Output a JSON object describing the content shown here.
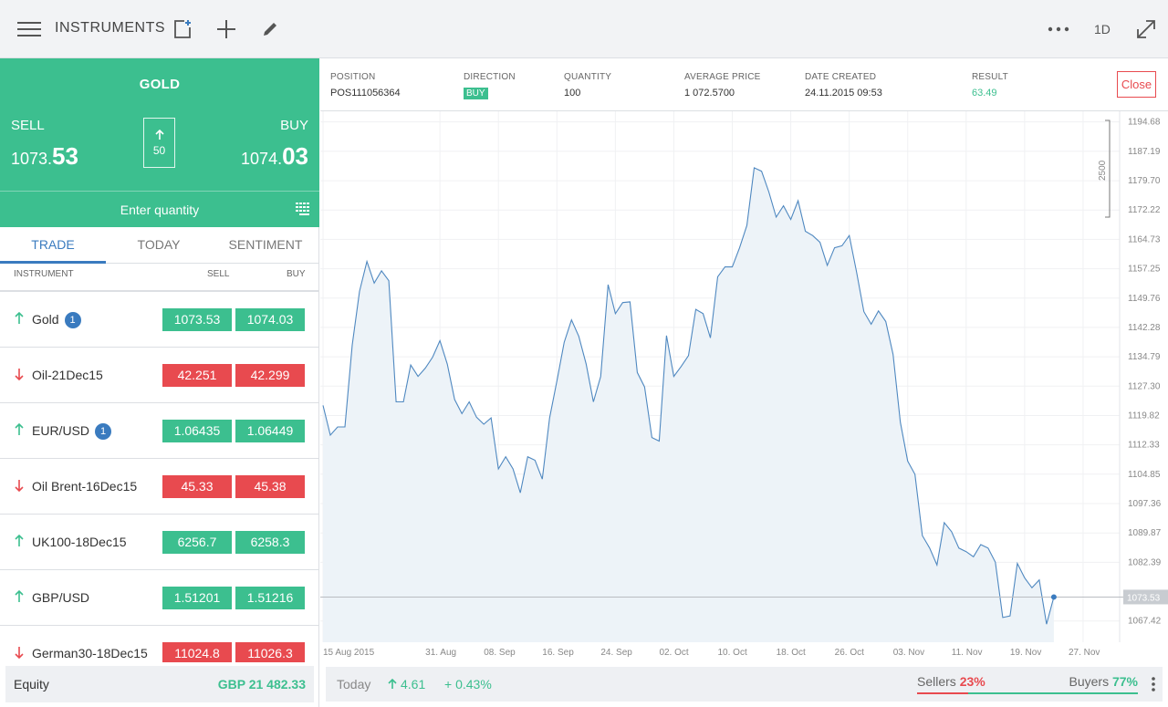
{
  "header": {
    "title": "INSTRUMENTS",
    "timeframe": "1D"
  },
  "ticket": {
    "instrument": "GOLD",
    "sell_label": "SELL",
    "buy_label": "BUY",
    "sell_price_main": "1073.",
    "sell_price_big": "53",
    "buy_price_main": "1074.",
    "buy_price_big": "03",
    "spread": "50",
    "quantity_placeholder": "Enter quantity"
  },
  "tabs": [
    "TRADE",
    "TODAY",
    "SENTIMENT"
  ],
  "instrument_list": {
    "headers": {
      "instrument": "INSTRUMENT",
      "sell": "SELL",
      "buy": "BUY"
    },
    "rows": [
      {
        "name": "Gold",
        "badge": "1",
        "direction": "up",
        "sell": "1073.53",
        "buy": "1074.03"
      },
      {
        "name": "Oil-21Dec15",
        "badge": "",
        "direction": "down",
        "sell": "42.251",
        "buy": "42.299"
      },
      {
        "name": "EUR/USD",
        "badge": "1",
        "direction": "up",
        "sell": "1.06435",
        "buy": "1.06449"
      },
      {
        "name": "Oil Brent-16Dec15",
        "badge": "",
        "direction": "down",
        "sell": "45.33",
        "buy": "45.38"
      },
      {
        "name": "UK100-18Dec15",
        "badge": "",
        "direction": "up",
        "sell": "6256.7",
        "buy": "6258.3"
      },
      {
        "name": "GBP/USD",
        "badge": "",
        "direction": "up",
        "sell": "1.51201",
        "buy": "1.51216"
      },
      {
        "name": "German30-18Dec15",
        "badge": "",
        "direction": "down",
        "sell": "11024.8",
        "buy": "11026.3"
      }
    ]
  },
  "equity": {
    "label": "Equity",
    "value": "GBP 21 482.33"
  },
  "position": {
    "position_label": "POSITION",
    "position_value": "POS111056364",
    "direction_label": "DIRECTION",
    "direction_value": "BUY",
    "quantity_label": "QUANTITY",
    "quantity_value": "100",
    "avg_price_label": "AVERAGE PRICE",
    "avg_price_value": "1 072.5700",
    "date_label": "DATE CREATED",
    "date_value": "24.11.2015 09:53",
    "result_label": "RESULT",
    "result_value": "63.49",
    "close_label": "Close"
  },
  "bottom": {
    "today_label": "Today",
    "change_value": "4.61",
    "change_pct": "+ 0.43%",
    "sellers_label": "Sellers",
    "sellers_value": "23%",
    "sellers_fraction": 0.23,
    "buyers_label": "Buyers",
    "buyers_value": "77%"
  },
  "colors": {
    "up": "#3cbf8f",
    "down": "#e84a4f",
    "accent": "#3a7bbf"
  },
  "chart_data": {
    "type": "area",
    "current_price_label": "1073.53",
    "current_price": 1073.53,
    "scale_marker_label": "2500",
    "y_ticks": [
      "1194.68",
      "1187.19",
      "1179.70",
      "1172.22",
      "1164.73",
      "1157.25",
      "1149.76",
      "1142.28",
      "1134.79",
      "1127.30",
      "1119.82",
      "1112.33",
      "1104.85",
      "1097.36",
      "1089.87",
      "1082.39",
      "1067.42"
    ],
    "ylim": [
      1062.0,
      1196.0
    ],
    "x_ticks": [
      "15 Aug 2015",
      "31. Aug",
      "08. Sep",
      "16. Sep",
      "24. Sep",
      "02. Oct",
      "10. Oct",
      "18. Oct",
      "26. Oct",
      "03. Nov",
      "11. Nov",
      "19. Nov",
      "27. Nov"
    ],
    "x_tick_days": [
      0,
      16,
      24,
      32,
      40,
      48,
      56,
      64,
      72,
      80,
      88,
      96,
      104
    ],
    "x_days": [
      0,
      1,
      2,
      3,
      4,
      5,
      6,
      7,
      8,
      9,
      10,
      11,
      12,
      13,
      14,
      15,
      16,
      17,
      18,
      19,
      20,
      21,
      22,
      23,
      24,
      25,
      26,
      27,
      28,
      29,
      30,
      31,
      32,
      33,
      34,
      35,
      36,
      37,
      38,
      39,
      40,
      41,
      42,
      43,
      44,
      45,
      46,
      47,
      48,
      49,
      50,
      51,
      52,
      53,
      54,
      55,
      56,
      57,
      58,
      59,
      60,
      61,
      62,
      63,
      64,
      65,
      66,
      67,
      68,
      69,
      70,
      71,
      72,
      73,
      74,
      75,
      76,
      77,
      78,
      79,
      80,
      81,
      82,
      83,
      84,
      85,
      86,
      87,
      88,
      89,
      90,
      91,
      92,
      93,
      94,
      95,
      96,
      97,
      98,
      99,
      100
    ],
    "values": [
      1122.4,
      1114.8,
      1116.9,
      1116.9,
      1137.8,
      1151.5,
      1159.1,
      1153.6,
      1156.7,
      1154.2,
      1123.3,
      1123.3,
      1132.7,
      1129.8,
      1131.9,
      1134.7,
      1138.9,
      1132.9,
      1123.9,
      1120.3,
      1123.3,
      1119.4,
      1117.6,
      1119.2,
      1106.2,
      1109.3,
      1106.2,
      1100.1,
      1109.3,
      1108.4,
      1103.6,
      1119.2,
      1128.6,
      1138.5,
      1144.2,
      1140.0,
      1133.0,
      1123.3,
      1129.8,
      1153.2,
      1145.8,
      1148.6,
      1148.8,
      1130.8,
      1127.1,
      1114.2,
      1113.3,
      1140.2,
      1129.8,
      1132.3,
      1135.1,
      1146.9,
      1145.8,
      1139.6,
      1155.2,
      1157.7,
      1157.7,
      1162.6,
      1168.3,
      1183.0,
      1182.1,
      1176.8,
      1170.4,
      1173.3,
      1169.8,
      1174.6,
      1166.8,
      1165.7,
      1164.0,
      1158.1,
      1162.6,
      1163.1,
      1165.7,
      1156.4,
      1146.3,
      1143.1,
      1146.5,
      1143.8,
      1135.4,
      1118.1,
      1108.2,
      1104.8,
      1089.2,
      1086.0,
      1081.7,
      1092.5,
      1090.2,
      1086.0,
      1085.1,
      1083.8,
      1086.9,
      1086.0,
      1082.4,
      1068.3,
      1068.7,
      1082.1,
      1078.4,
      1075.9,
      1077.9,
      1066.6,
      1073.53
    ]
  }
}
